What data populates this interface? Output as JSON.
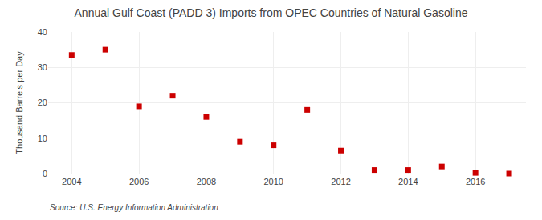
{
  "chart_data": {
    "type": "scatter",
    "title": "Annual Gulf Coast (PADD 3) Imports from OPEC Countries of Natural Gasoline",
    "ylabel": "Thousand Barrels per Day",
    "source": "Source: U.S. Energy Information Administration",
    "x": [
      2004,
      2005,
      2006,
      2007,
      2008,
      2009,
      2010,
      2011,
      2012,
      2013,
      2014,
      2015,
      2016,
      2017
    ],
    "values": [
      33.5,
      35.0,
      19.0,
      22.0,
      16.0,
      9.0,
      8.0,
      18.0,
      6.5,
      1.0,
      1.0,
      2.0,
      0.2,
      0.0
    ],
    "color": "#cc0000",
    "marker": "square",
    "xlim": [
      2003.3,
      2017.5
    ],
    "xticks": [
      2004,
      2006,
      2008,
      2010,
      2012,
      2014,
      2016
    ],
    "ylim": [
      0,
      40
    ],
    "yticks": [
      0,
      10,
      20,
      30,
      40
    ],
    "grid": true
  }
}
